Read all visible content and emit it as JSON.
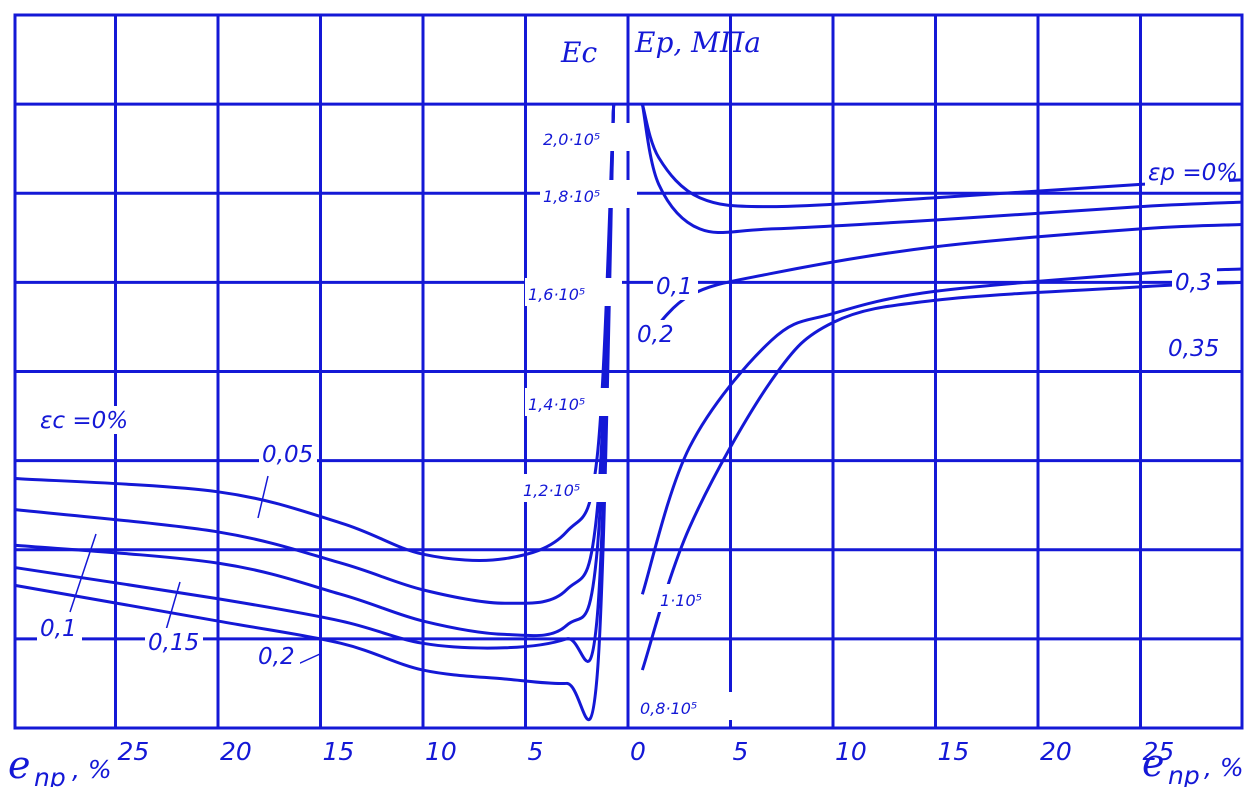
{
  "chart_data": {
    "type": "line",
    "title_left": "Ec",
    "title_right": "Ep, MПa",
    "x_axis_label": "e",
    "x_axis_label_sub": "np",
    "x_axis_unit": ", %",
    "x_ticks_left": [
      "25",
      "20",
      "15",
      "10",
      "5"
    ],
    "x_ticks_right": [
      "0",
      "5",
      "10",
      "15",
      "20",
      "25"
    ],
    "y_ticks": [
      "0,8·10⁵",
      "1·10⁵",
      "1,2·10⁵",
      "1,4·10⁵",
      "1,6·10⁵",
      "1,8·10⁵",
      "2,0·10⁵"
    ],
    "y_tick_values": [
      80000,
      100000,
      120000,
      140000,
      160000,
      180000,
      200000
    ],
    "ylim": [
      60000,
      220000
    ],
    "grid": true,
    "compression_series": [
      {
        "name": "εc =0%",
        "x": [
          30,
          20,
          14,
          10,
          6,
          3,
          1.5,
          0.7
        ],
        "y": [
          116000,
          113000,
          106000,
          99000,
          98000,
          104000,
          121000,
          200000
        ]
      },
      {
        "name": "0,05",
        "x": [
          30,
          20,
          14,
          10,
          6,
          3,
          1.5,
          0.7
        ],
        "y": [
          109000,
          104000,
          97000,
          91000,
          88000,
          91000,
          109000,
          200000
        ]
      },
      {
        "name": "0,1",
        "x": [
          30,
          20,
          14,
          10,
          6,
          3,
          1.5,
          0.7
        ],
        "y": [
          101000,
          97000,
          90000,
          84000,
          81000,
          83000,
          100000,
          200000
        ]
      },
      {
        "name": "0,15",
        "x": [
          30,
          20,
          14,
          10,
          6,
          3,
          1.5,
          0.7
        ],
        "y": [
          96000,
          89000,
          84000,
          79000,
          78000,
          80000,
          85000,
          200000
        ]
      },
      {
        "name": "0,2",
        "x": [
          30,
          20,
          14,
          10,
          6,
          3,
          1.5,
          0.7
        ],
        "y": [
          92000,
          84000,
          79000,
          73000,
          71000,
          70000,
          72000,
          200000
        ]
      }
    ],
    "tension_series": [
      {
        "name": "εp =0%",
        "x": [
          0.7,
          1.5,
          3.5,
          7,
          15,
          25,
          30
        ],
        "y": [
          200000,
          188000,
          179000,
          177000,
          179000,
          182000,
          183000
        ]
      },
      {
        "name": "0,1",
        "x": [
          0.7,
          1.5,
          3.5,
          7,
          15,
          25,
          30
        ],
        "y": [
          200000,
          182000,
          172000,
          172000,
          174000,
          177000,
          178000
        ]
      },
      {
        "name": "0,2",
        "x": [
          0.7,
          3,
          7,
          15,
          25,
          30
        ],
        "y": [
          146000,
          157000,
          162000,
          168000,
          172000,
          173000
        ]
      },
      {
        "name": "0,3",
        "x": [
          0.7,
          3,
          7,
          10,
          15,
          25,
          30
        ],
        "y": [
          90000,
          123000,
          147000,
          153000,
          158000,
          162000,
          163000
        ]
      },
      {
        "name": "0,35",
        "x": [
          0.7,
          3,
          7,
          10,
          15,
          25,
          30
        ],
        "y": [
          73000,
          105000,
          138000,
          151000,
          156000,
          159000,
          160000
        ]
      }
    ]
  }
}
